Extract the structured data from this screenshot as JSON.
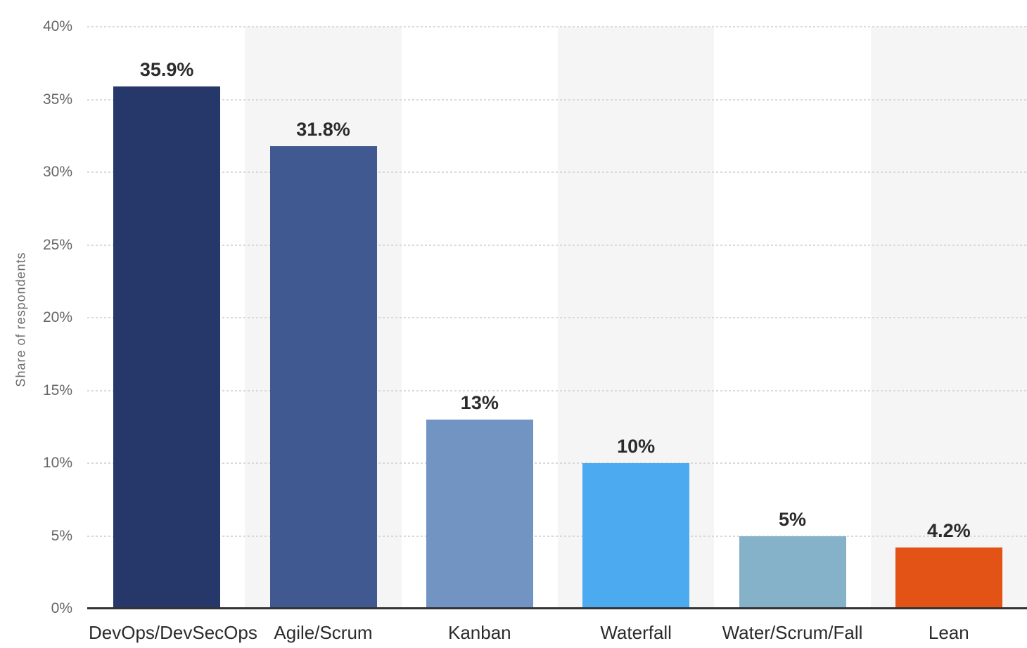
{
  "chart_data": {
    "type": "bar",
    "title": "",
    "xlabel": "",
    "ylabel": "Share of respondents",
    "categories": [
      "DevOps/DevSecOps",
      "Agile/Scrum",
      "Kanban",
      "Waterfall",
      "Water/Scrum/Fall",
      "Lean"
    ],
    "values": [
      35.9,
      31.8,
      13,
      10,
      5,
      4.2
    ],
    "value_labels": [
      "35.9%",
      "31.8%",
      "13%",
      "10%",
      "5%",
      "4.2%"
    ],
    "bar_colors": [
      "#253869",
      "#405a91",
      "#7194c2",
      "#4caaf1",
      "#85b2c8",
      "#e25315"
    ],
    "ylim": [
      0,
      40
    ],
    "y_ticks": [
      "0%",
      "5%",
      "10%",
      "15%",
      "20%",
      "25%",
      "30%",
      "35%",
      "40%"
    ],
    "y_tick_step": 5,
    "grid": "horizontal dotted gridlines",
    "legend": "none",
    "plot_band_colors": [
      "#ffffff",
      "#f5f5f5"
    ],
    "axis_line_color": "#333333",
    "gridline_color": "#d9d9d9",
    "tick_label_color": "#666666",
    "value_label_color": "#2b2b2b",
    "category_label_color": "#2b2b2b"
  }
}
